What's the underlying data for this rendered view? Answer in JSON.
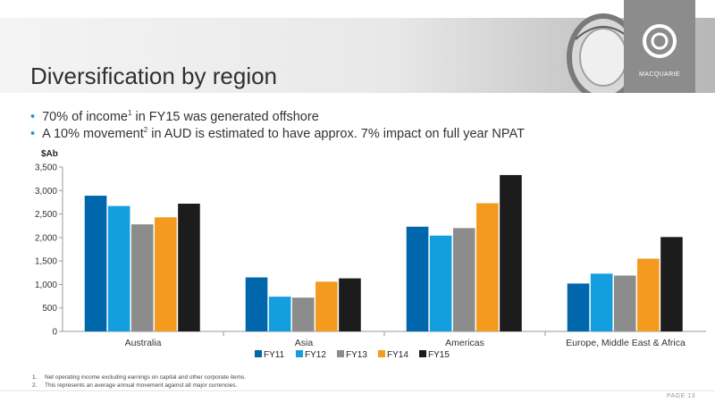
{
  "slide": {
    "title": "Diversification by region",
    "bullets": [
      {
        "pre": "70% of income",
        "sup": "1",
        "post": " in FY15 was generated offshore"
      },
      {
        "pre": "A 10% movement",
        "sup": "2",
        "post": " in AUD is estimated to have approx. 7% impact on full year NPAT"
      }
    ],
    "footnotes": [
      {
        "num": "1.",
        "text": "Net operating income excluding earnings on capital and other corporate items."
      },
      {
        "num": "2.",
        "text": "This represents an average annual movement against all major currencies."
      }
    ],
    "page_label": "PAGE 13",
    "logo_text": "MACQUARIE"
  },
  "chart_data": {
    "type": "bar",
    "title": "",
    "ylabel": "$Ab",
    "xlabel": "",
    "ylim": [
      0,
      3500
    ],
    "yticks": [
      0,
      500,
      1000,
      1500,
      2000,
      2500,
      3000,
      3500
    ],
    "ytick_labels": [
      "0",
      "500",
      "1,000",
      "1,500",
      "2,000",
      "2,500",
      "3,000",
      "3,500"
    ],
    "grid": false,
    "legend_position": "bottom",
    "categories": [
      "Australia",
      "Asia",
      "Americas",
      "Europe, Middle East & Africa"
    ],
    "series": [
      {
        "name": "FY11",
        "color": "#0067ac",
        "values": [
          2890,
          1150,
          2230,
          1020
        ]
      },
      {
        "name": "FY12",
        "color": "#149ee0",
        "values": [
          2670,
          740,
          2040,
          1230
        ]
      },
      {
        "name": "FY13",
        "color": "#8c8c8c",
        "values": [
          2280,
          720,
          2200,
          1190
        ]
      },
      {
        "name": "FY14",
        "color": "#f39a1f",
        "values": [
          2430,
          1060,
          2730,
          1550
        ]
      },
      {
        "name": "FY15",
        "color": "#1c1c1c",
        "values": [
          2720,
          1130,
          3330,
          2010
        ]
      }
    ]
  }
}
